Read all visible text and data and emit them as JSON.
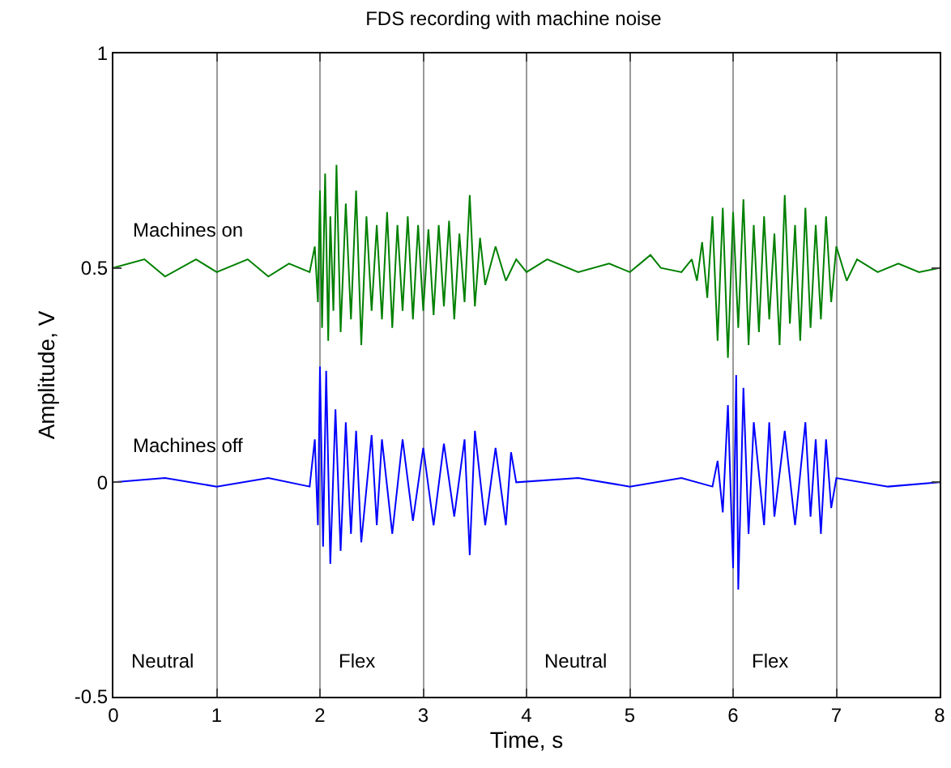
{
  "chart_data": {
    "type": "line",
    "title": "FDS recording with machine noise",
    "xlabel": "Time, s",
    "ylabel": "Amplitude, V",
    "xlim": [
      0,
      8
    ],
    "xticks": [
      0,
      1,
      2,
      3,
      4,
      5,
      6,
      7,
      8
    ],
    "ylim": [
      -0.5,
      1
    ],
    "yticks": [
      -0.5,
      0,
      0.5,
      1
    ],
    "grid": "x",
    "marker": "none",
    "line_style": "solid",
    "annotations": [
      "Neutral",
      "Flex",
      "Neutral",
      "Flex"
    ],
    "series": [
      {
        "name": "Machines on",
        "color": "#008000",
        "x": [
          0,
          0.3,
          0.5,
          0.8,
          1.0,
          1.3,
          1.5,
          1.7,
          1.9,
          1.95,
          1.98,
          2.0,
          2.02,
          2.05,
          2.08,
          2.1,
          2.13,
          2.16,
          2.2,
          2.25,
          2.3,
          2.35,
          2.4,
          2.45,
          2.5,
          2.55,
          2.6,
          2.65,
          2.7,
          2.75,
          2.8,
          2.85,
          2.9,
          2.95,
          3.0,
          3.05,
          3.1,
          3.15,
          3.2,
          3.25,
          3.3,
          3.35,
          3.4,
          3.45,
          3.5,
          3.55,
          3.6,
          3.7,
          3.8,
          3.9,
          4.0,
          4.2,
          4.5,
          4.8,
          5.0,
          5.1,
          5.2,
          5.3,
          5.5,
          5.6,
          5.65,
          5.7,
          5.75,
          5.8,
          5.85,
          5.9,
          5.95,
          6.0,
          6.05,
          6.1,
          6.15,
          6.2,
          6.25,
          6.3,
          6.35,
          6.4,
          6.45,
          6.5,
          6.55,
          6.6,
          6.65,
          6.7,
          6.75,
          6.8,
          6.85,
          6.9,
          6.95,
          7.0,
          7.1,
          7.2,
          7.4,
          7.6,
          7.8,
          8.0
        ],
        "values": [
          0.5,
          0.52,
          0.48,
          0.52,
          0.49,
          0.52,
          0.48,
          0.51,
          0.49,
          0.55,
          0.42,
          0.68,
          0.36,
          0.72,
          0.33,
          0.62,
          0.4,
          0.74,
          0.35,
          0.65,
          0.38,
          0.68,
          0.32,
          0.62,
          0.4,
          0.6,
          0.38,
          0.63,
          0.36,
          0.6,
          0.4,
          0.62,
          0.38,
          0.6,
          0.4,
          0.59,
          0.39,
          0.6,
          0.41,
          0.61,
          0.38,
          0.58,
          0.42,
          0.67,
          0.41,
          0.57,
          0.46,
          0.55,
          0.47,
          0.52,
          0.49,
          0.52,
          0.49,
          0.51,
          0.49,
          0.51,
          0.53,
          0.5,
          0.49,
          0.52,
          0.47,
          0.56,
          0.43,
          0.62,
          0.33,
          0.64,
          0.29,
          0.63,
          0.36,
          0.66,
          0.32,
          0.6,
          0.35,
          0.62,
          0.38,
          0.58,
          0.32,
          0.67,
          0.37,
          0.6,
          0.33,
          0.64,
          0.36,
          0.6,
          0.38,
          0.62,
          0.42,
          0.55,
          0.47,
          0.52,
          0.49,
          0.51,
          0.49,
          0.5
        ]
      },
      {
        "name": "Machines off",
        "color": "#0000ff",
        "x": [
          0,
          0.5,
          1,
          1.5,
          1.9,
          1.95,
          1.98,
          2.0,
          2.03,
          2.06,
          2.1,
          2.15,
          2.2,
          2.25,
          2.3,
          2.35,
          2.4,
          2.5,
          2.55,
          2.6,
          2.7,
          2.8,
          2.9,
          3.0,
          3.1,
          3.2,
          3.3,
          3.4,
          3.45,
          3.5,
          3.6,
          3.7,
          3.8,
          3.85,
          3.9,
          4.5,
          5,
          5.5,
          5.8,
          5.85,
          5.9,
          5.95,
          6.0,
          6.03,
          6.05,
          6.1,
          6.15,
          6.2,
          6.3,
          6.35,
          6.4,
          6.5,
          6.6,
          6.7,
          6.75,
          6.8,
          6.85,
          6.9,
          6.95,
          7.0,
          7.5,
          8.0
        ],
        "values": [
          0,
          0.01,
          -0.01,
          0.01,
          -0.01,
          0.1,
          -0.1,
          0.27,
          -0.15,
          0.26,
          -0.19,
          0.17,
          -0.16,
          0.14,
          -0.12,
          0.12,
          -0.14,
          0.11,
          -0.1,
          0.1,
          -0.12,
          0.1,
          -0.09,
          0.08,
          -0.1,
          0.09,
          -0.08,
          0.1,
          -0.17,
          0.12,
          -0.1,
          0.08,
          -0.1,
          0.07,
          0,
          0.01,
          -0.01,
          0.01,
          -0.01,
          0.05,
          -0.07,
          0.18,
          -0.2,
          0.25,
          -0.25,
          0.22,
          -0.12,
          0.14,
          -0.1,
          0.14,
          -0.08,
          0.12,
          -0.1,
          0.14,
          -0.08,
          0.1,
          -0.12,
          0.1,
          -0.06,
          0.01,
          -0.01,
          0
        ]
      }
    ]
  }
}
